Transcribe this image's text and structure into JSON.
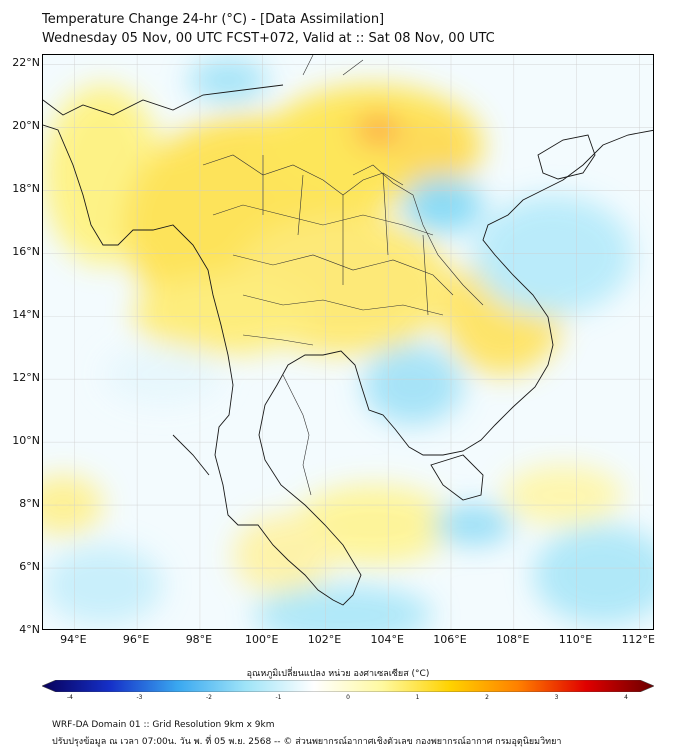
{
  "header": {
    "title_line1": "Temperature Change 24-hr (°C) - [Data Assimilation]",
    "title_line2": "Wednesday 05 Nov, 00 UTC FCST+072, Valid at :: Sat 08 Nov, 00 UTC"
  },
  "map": {
    "lat_labels": [
      "22°N",
      "20°N",
      "18°N",
      "16°N",
      "14°N",
      "12°N",
      "10°N",
      "8°N",
      "6°N",
      "4°N"
    ],
    "lon_labels": [
      "94°E",
      "96°E",
      "98°E",
      "100°E",
      "102°E",
      "104°E",
      "106°E",
      "108°E",
      "110°E",
      "112°E"
    ],
    "extent": {
      "lon_min": 93.0,
      "lon_max": 112.5,
      "lat_min": 4.0,
      "lat_max": 22.3
    },
    "warm_color": "#ffd800",
    "cool_color": "#47c8f0",
    "land_line_color": "#222222"
  },
  "colorbar": {
    "title": "อุณหภูมิเปลี่ยนแปลง หน่วย องศาเซลเซียส (°C)",
    "ticks": [
      "-4",
      "-3",
      "-2",
      "-1",
      "0",
      "1",
      "2",
      "3",
      "4"
    ],
    "min": -4,
    "max": 4,
    "colors": [
      "#08005a",
      "#1530c8",
      "#3aa8f0",
      "#9fe4f8",
      "#ffffff",
      "#fff9a0",
      "#ffd200",
      "#ff8000",
      "#e00000",
      "#6a0000"
    ]
  },
  "footer": {
    "line1": "WRF-DA Domain 01 :: Grid Resolution 9km x 9km",
    "line2": "ปรับปรุงข้อมูล ณ เวลา 07:00น. วัน พ. ที่ 05 พ.ย. 2568 -- © ส่วนพยากรณ์อากาศเชิงตัวเลข กองพยากรณ์อากาศ กรมอุตุนิยมวิทยา"
  }
}
